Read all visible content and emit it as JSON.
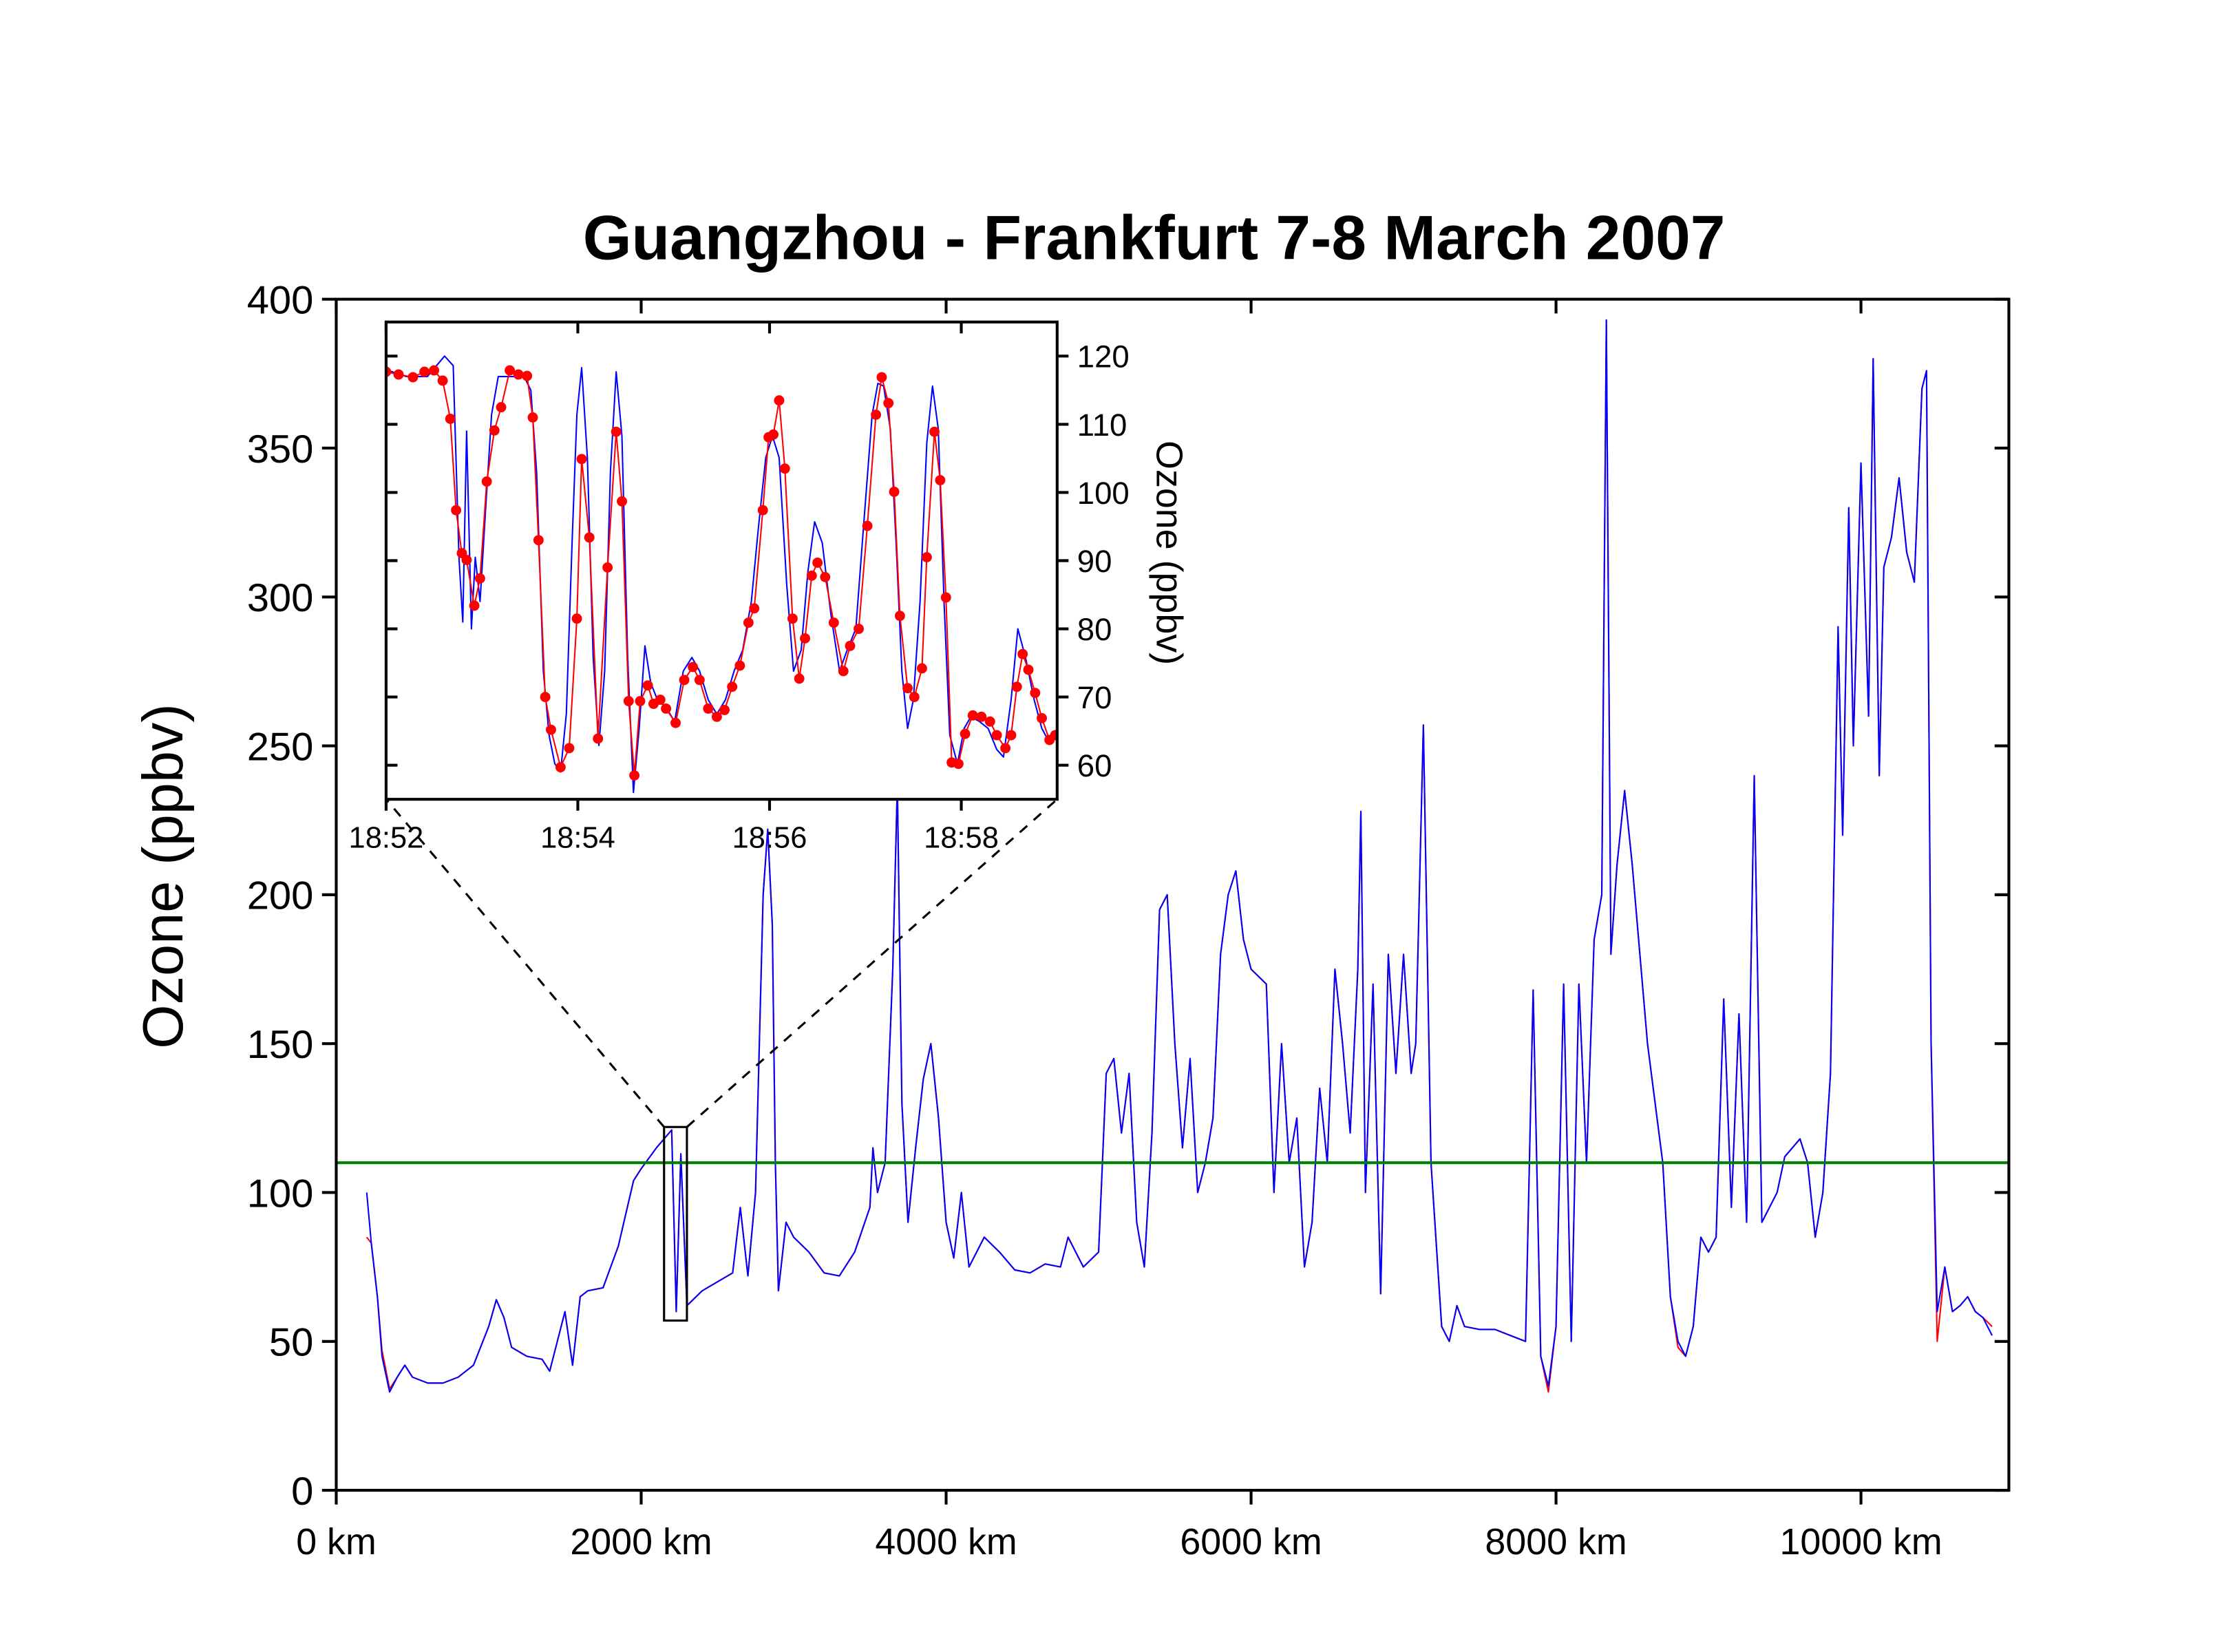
{
  "chart_data": [
    {
      "type": "line",
      "title": "Guangzhou - Frankfurt  7-8 March 2007",
      "y_label": "Ozone (ppbv)",
      "x": [
        200,
        230,
        270,
        300,
        350,
        400,
        450,
        500,
        600,
        700,
        800,
        900,
        1000,
        1050,
        1100,
        1150,
        1250,
        1350,
        1400,
        1450,
        1500,
        1550,
        1600,
        1650,
        1750,
        1850,
        1950,
        2000,
        2100,
        2150,
        2200,
        2230,
        2260,
        2300,
        2400,
        2500,
        2600,
        2650,
        2700,
        2750,
        2800,
        2830,
        2860,
        2880,
        2900,
        2950,
        3000,
        3100,
        3200,
        3300,
        3400,
        3500,
        3520,
        3550,
        3600,
        3650,
        3680,
        3710,
        3750,
        3800,
        3850,
        3900,
        3950,
        4000,
        4050,
        4100,
        4150,
        4250,
        4350,
        4450,
        4550,
        4650,
        4750,
        4800,
        4900,
        5000,
        5050,
        5100,
        5150,
        5200,
        5250,
        5300,
        5350,
        5400,
        5450,
        5500,
        5550,
        5600,
        5650,
        5700,
        5750,
        5800,
        5850,
        5900,
        5950,
        6000,
        6100,
        6150,
        6200,
        6250,
        6300,
        6350,
        6400,
        6450,
        6500,
        6550,
        6600,
        6650,
        6700,
        6720,
        6750,
        6800,
        6850,
        6900,
        6950,
        7000,
        7050,
        7080,
        7130,
        7180,
        7250,
        7300,
        7350,
        7400,
        7500,
        7600,
        7700,
        7800,
        7850,
        7900,
        7950,
        8000,
        8050,
        8100,
        8150,
        8200,
        8250,
        8300,
        8330,
        8360,
        8400,
        8450,
        8500,
        8550,
        8600,
        8700,
        8750,
        8800,
        8850,
        8900,
        8950,
        9000,
        9050,
        9100,
        9150,
        9200,
        9250,
        9300,
        9350,
        9400,
        9450,
        9500,
        9550,
        9600,
        9650,
        9700,
        9750,
        9800,
        9850,
        9880,
        9920,
        9950,
        10000,
        10050,
        10080,
        10120,
        10150,
        10200,
        10250,
        10300,
        10350,
        10400,
        10430,
        10460,
        10500,
        10550,
        10600,
        10650,
        10700,
        10750,
        10800,
        10860
      ],
      "series": [
        {
          "color": "#ff0000",
          "values": [
            85,
            83,
            65,
            47,
            34,
            38,
            42,
            38,
            36,
            36,
            38,
            42,
            55,
            64,
            58,
            48,
            45,
            44,
            40,
            50,
            60,
            42,
            65,
            67,
            68,
            82,
            104,
            108,
            115,
            118,
            121,
            60,
            113,
            62,
            67,
            70,
            73,
            95,
            72,
            100,
            200,
            222,
            190,
            110,
            67,
            90,
            85,
            80,
            73,
            72,
            80,
            95,
            115,
            100,
            110,
            175,
            237,
            130,
            90,
            115,
            138,
            150,
            125,
            90,
            78,
            100,
            75,
            85,
            80,
            74,
            73,
            76,
            75,
            85,
            75,
            80,
            140,
            145,
            120,
            140,
            90,
            75,
            120,
            195,
            200,
            150,
            115,
            145,
            100,
            110,
            125,
            180,
            200,
            208,
            185,
            175,
            170,
            100,
            150,
            110,
            125,
            75,
            90,
            135,
            110,
            175,
            150,
            120,
            175,
            228,
            100,
            170,
            66,
            180,
            140,
            180,
            140,
            150,
            257,
            110,
            55,
            50,
            62,
            55,
            54,
            54,
            52,
            50,
            168,
            45,
            33,
            55,
            170,
            50,
            170,
            110,
            185,
            200,
            393,
            180,
            210,
            235,
            210,
            180,
            150,
            110,
            65,
            48,
            45,
            55,
            85,
            80,
            85,
            165,
            95,
            160,
            90,
            240,
            90,
            95,
            100,
            112,
            115,
            118,
            110,
            85,
            100,
            140,
            290,
            220,
            330,
            250,
            345,
            260,
            380,
            240,
            310,
            320,
            340,
            315,
            305,
            370,
            376,
            150,
            50,
            75,
            60,
            62,
            65,
            60,
            58,
            55
          ]
        },
        {
          "color": "#0000ff",
          "values": [
            100,
            83,
            65,
            45,
            33,
            38,
            42,
            38,
            36,
            36,
            38,
            42,
            55,
            64,
            58,
            48,
            45,
            44,
            40,
            50,
            60,
            42,
            65,
            67,
            68,
            82,
            104,
            108,
            115,
            118,
            121,
            60,
            113,
            62,
            67,
            70,
            73,
            95,
            72,
            100,
            200,
            222,
            190,
            110,
            67,
            90,
            85,
            80,
            73,
            72,
            80,
            95,
            115,
            100,
            110,
            175,
            237,
            130,
            90,
            115,
            138,
            150,
            125,
            90,
            78,
            100,
            75,
            85,
            80,
            74,
            73,
            76,
            75,
            85,
            75,
            80,
            140,
            145,
            120,
            140,
            90,
            75,
            120,
            195,
            200,
            150,
            115,
            145,
            100,
            110,
            125,
            180,
            200,
            208,
            185,
            175,
            170,
            100,
            150,
            110,
            125,
            75,
            90,
            135,
            110,
            175,
            150,
            120,
            175,
            228,
            100,
            170,
            66,
            180,
            140,
            180,
            140,
            150,
            257,
            110,
            55,
            50,
            62,
            55,
            54,
            54,
            52,
            50,
            168,
            45,
            35,
            55,
            170,
            50,
            170,
            110,
            185,
            200,
            393,
            180,
            210,
            235,
            210,
            180,
            150,
            110,
            65,
            50,
            45,
            55,
            85,
            80,
            85,
            165,
            95,
            160,
            90,
            240,
            90,
            95,
            100,
            112,
            115,
            118,
            110,
            85,
            100,
            140,
            290,
            220,
            330,
            250,
            345,
            260,
            380,
            240,
            310,
            320,
            340,
            315,
            305,
            370,
            376,
            150,
            60,
            75,
            60,
            62,
            65,
            60,
            58,
            52
          ]
        }
      ],
      "xlim": [
        0,
        10970
      ],
      "xticks": [
        {
          "value": 0,
          "label": "0 km"
        },
        {
          "value": 2000,
          "label": "2000 km"
        },
        {
          "value": 4000,
          "label": "4000 km"
        },
        {
          "value": 6000,
          "label": "6000 km"
        },
        {
          "value": 8000,
          "label": "8000 km"
        },
        {
          "value": 10000,
          "label": "10000 km"
        }
      ],
      "ylim": [
        0,
        400
      ],
      "yticks": [
        0,
        50,
        100,
        150,
        200,
        250,
        300,
        350,
        400
      ],
      "reference_line": {
        "value": 110,
        "color": "#008000"
      },
      "zoom_box": {
        "x": [
          2150,
          2300
        ],
        "y": [
          57,
          122
        ]
      }
    },
    {
      "type": "line",
      "y_label": "Ozone (ppbv)",
      "yaxis_side": "right",
      "series": [
        {
          "color": "#0000ff",
          "x": [
            1132.0,
            1132.21,
            1132.43,
            1132.61,
            1132.7,
            1132.76,
            1132.8,
            1132.84,
            1132.89,
            1132.93,
            1132.98,
            1133.04,
            1133.1,
            1133.17,
            1133.26,
            1133.35,
            1133.44,
            1133.51,
            1133.57,
            1133.64,
            1133.7,
            1133.76,
            1133.82,
            1133.88,
            1133.94,
            1133.99,
            1134.04,
            1134.1,
            1134.16,
            1134.22,
            1134.28,
            1134.34,
            1134.4,
            1134.46,
            1134.52,
            1134.58,
            1134.64,
            1134.7,
            1134.76,
            1134.83,
            1134.92,
            1135.01,
            1135.1,
            1135.19,
            1135.27,
            1135.36,
            1135.45,
            1135.54,
            1135.63,
            1135.72,
            1135.81,
            1135.88,
            1135.96,
            1136.03,
            1136.1,
            1136.18,
            1136.25,
            1136.33,
            1136.4,
            1136.47,
            1136.55,
            1136.64,
            1136.73,
            1136.81,
            1136.9,
            1136.99,
            1137.07,
            1137.13,
            1137.19,
            1137.26,
            1137.32,
            1137.38,
            1137.44,
            1137.5,
            1137.57,
            1137.64,
            1137.7,
            1137.76,
            1137.82,
            1137.88,
            1137.96,
            1138.03,
            1138.1,
            1138.19,
            1138.28,
            1138.37,
            1138.44,
            1138.52,
            1138.59,
            1138.67,
            1138.76,
            1138.84,
            1138.92,
            1138.98
          ],
          "values": [
            118,
            117,
            117,
            120,
            118.6,
            90.5,
            81,
            109,
            80,
            90.5,
            84,
            98,
            111.4,
            117,
            117,
            117,
            117,
            115,
            103,
            73.8,
            64.4,
            60.2,
            59,
            67.5,
            92.6,
            111.4,
            118.3,
            105,
            75.8,
            62.9,
            73.8,
            103,
            117.7,
            108.3,
            75.8,
            56,
            65.4,
            77.5,
            72.1,
            69.6,
            68.5,
            66.4,
            73.8,
            75.8,
            73.8,
            69.6,
            67.5,
            69.6,
            73.8,
            76.9,
            84,
            94.3,
            105.1,
            108.3,
            105.1,
            86.3,
            73.8,
            76.9,
            88.4,
            95.7,
            92.6,
            82.1,
            73.8,
            76.9,
            80,
            96.8,
            111.4,
            116,
            115.6,
            109.3,
            92.6,
            73.8,
            65.4,
            69.6,
            84,
            107.2,
            115.6,
            109.3,
            84,
            64.4,
            60.2,
            65.4,
            67.1,
            66.4,
            65.4,
            62.3,
            61.2,
            69.6,
            80,
            75.8,
            69.6,
            65.4,
            63.3,
            64.4
          ]
        },
        {
          "color": "#ff0000",
          "marker": "circle",
          "x": [
            1132.0,
            1132.13,
            1132.28,
            1132.4,
            1132.5,
            1132.59,
            1132.67,
            1132.73,
            1132.79,
            1132.84,
            1132.92,
            1132.98,
            1133.05,
            1133.13,
            1133.2,
            1133.29,
            1133.38,
            1133.47,
            1133.53,
            1133.59,
            1133.66,
            1133.72,
            1133.82,
            1133.91,
            1133.99,
            1134.04,
            1134.12,
            1134.21,
            1134.31,
            1134.4,
            1134.46,
            1134.53,
            1134.59,
            1134.65,
            1134.73,
            1134.79,
            1134.86,
            1134.92,
            1135.02,
            1135.11,
            1135.2,
            1135.27,
            1135.36,
            1135.45,
            1135.53,
            1135.61,
            1135.69,
            1135.78,
            1135.84,
            1135.93,
            1135.99,
            1136.04,
            1136.1,
            1136.16,
            1136.24,
            1136.31,
            1136.37,
            1136.44,
            1136.5,
            1136.58,
            1136.67,
            1136.77,
            1136.84,
            1136.93,
            1137.02,
            1137.11,
            1137.17,
            1137.24,
            1137.3,
            1137.36,
            1137.44,
            1137.51,
            1137.59,
            1137.64,
            1137.72,
            1137.78,
            1137.84,
            1137.9,
            1137.97,
            1138.04,
            1138.12,
            1138.21,
            1138.3,
            1138.37,
            1138.46,
            1138.52,
            1138.58,
            1138.64,
            1138.7,
            1138.77,
            1138.84,
            1138.92,
            1138.98
          ],
          "values": [
            117.7,
            117.3,
            116.9,
            117.7,
            117.9,
            116.4,
            110.8,
            97.4,
            91.1,
            90.1,
            83.4,
            87.4,
            101.6,
            109.1,
            112.5,
            117.9,
            117.3,
            117.1,
            111.0,
            93.0,
            70.0,
            65.2,
            59.7,
            62.5,
            81.5,
            104.9,
            93.4,
            63.9,
            89.0,
            108.9,
            98.7,
            69.4,
            58.5,
            69.4,
            71.7,
            69.0,
            69.6,
            68.3,
            66.2,
            72.5,
            74.4,
            72.5,
            68.3,
            67.1,
            68.1,
            71.5,
            74.6,
            80.9,
            83.0,
            97.4,
            108.1,
            108.5,
            113.5,
            103.5,
            81.5,
            72.7,
            78.6,
            87.8,
            89.7,
            87.6,
            80.9,
            73.8,
            77.5,
            80.0,
            95.1,
            111.4,
            116.9,
            113.1,
            100.1,
            81.9,
            71.3,
            70.0,
            74.2,
            90.5,
            108.9,
            101.8,
            84.6,
            60.4,
            60.2,
            64.6,
            67.3,
            67.1,
            66.4,
            64.4,
            62.5,
            64.4,
            71.5,
            76.3,
            74.0,
            70.6,
            66.9,
            63.7,
            64.4
          ]
        }
      ],
      "xlim": [
        1132,
        1139
      ],
      "xticks": [
        {
          "value": 1132,
          "label": "18:52"
        },
        {
          "value": 1134,
          "label": "18:54"
        },
        {
          "value": 1136,
          "label": "18:56"
        },
        {
          "value": 1138,
          "label": "18:58"
        }
      ],
      "ylim": [
        55,
        125
      ],
      "yticks": [
        60,
        70,
        80,
        90,
        100,
        110,
        120
      ]
    }
  ]
}
